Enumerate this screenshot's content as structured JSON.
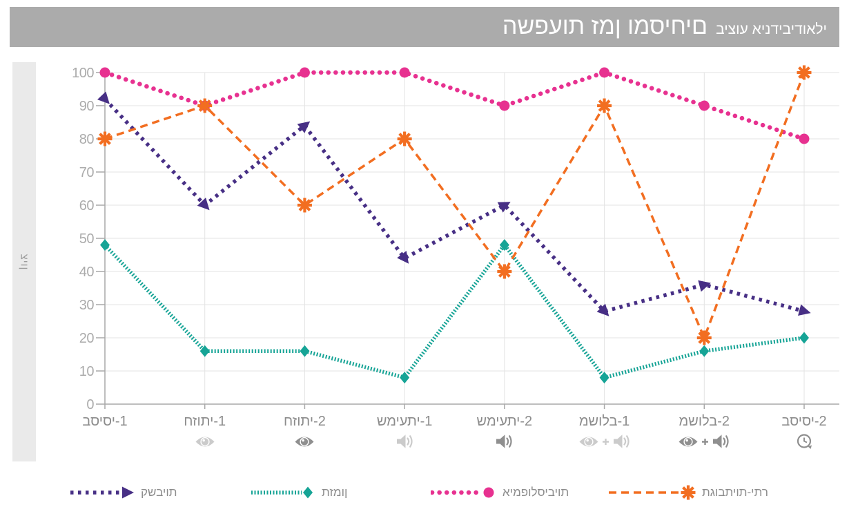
{
  "title": {
    "main": "השפעות זמן ומסיחים",
    "sub": "ביצוע אינדיבידואלי"
  },
  "y_axis_label": "ציון",
  "chart_data": {
    "type": "line",
    "title": "השפעות זמן ומסיחים ביצוע אינדיבידואלי",
    "xlabel": "",
    "ylabel": "ציון",
    "ylim": [
      0,
      100
    ],
    "yticks": [
      0,
      10,
      20,
      30,
      40,
      50,
      60,
      70,
      80,
      90,
      100
    ],
    "grid": true,
    "legend_position": "bottom",
    "categories": [
      "בסיסי-1",
      "חזותי-1",
      "חזותי-2",
      "שמיעתי-1",
      "שמיעתי-2",
      "משולב-1",
      "משולב-2",
      "בסיסי-2"
    ],
    "category_icons": [
      "none",
      "eye-light",
      "eye-dark",
      "speaker-light",
      "speaker-dark",
      "eye-plus-speaker-light",
      "eye-plus-speaker-dark",
      "clock"
    ],
    "icon_colors": {
      "light": "#CBCBCB",
      "dark": "#8F8F8F"
    },
    "series": [
      {
        "name": "קשביות",
        "color": "#472F85",
        "marker": "triangle-right",
        "dash": "dotted-square",
        "values": [
          92,
          60,
          84,
          44,
          60,
          28,
          36,
          28
        ]
      },
      {
        "name": "תזמון",
        "color": "#16A496",
        "marker": "diamond",
        "dash": "dotted-fine",
        "values": [
          48,
          16,
          16,
          8,
          48,
          8,
          16,
          20
        ]
      },
      {
        "name": "אימפולסיביות",
        "color": "#E73190",
        "marker": "circle",
        "dash": "dotted-round",
        "values": [
          100,
          90,
          100,
          100,
          90,
          100,
          90,
          80
        ]
      },
      {
        "name": "תגובתיות-יתר",
        "color": "#F26E21",
        "marker": "asterisk",
        "dash": "dashed",
        "values": [
          80,
          90,
          60,
          80,
          40,
          90,
          20,
          100
        ]
      }
    ],
    "axis_color": "#A9A9A9",
    "gridline_color": "#E3E3E3",
    "tick_label_color": "#ABABAB",
    "x_label_color": "#8C8C8C"
  }
}
